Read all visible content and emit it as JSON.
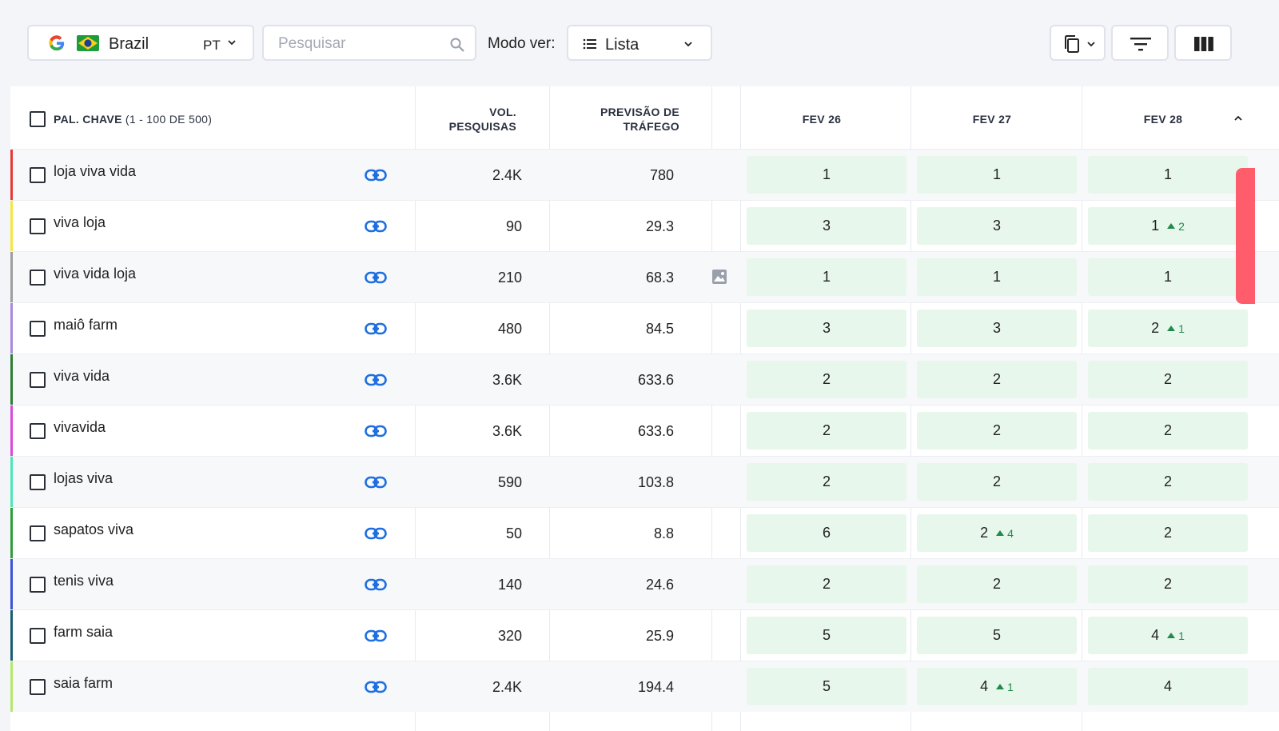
{
  "toolbar": {
    "country": "Brazil",
    "language": "PT",
    "search_placeholder": "Pesquisar",
    "search_value": "",
    "mode_label": "Modo ver:",
    "mode_value": "Lista"
  },
  "table": {
    "keyword_header": "PAL. CHAVE",
    "keyword_range": "(1 - 100 DE 500)",
    "volume_header_line1": "VOL.",
    "volume_header_line2": "PESQUISAS",
    "traffic_header_line1": "PREVISÃO DE",
    "traffic_header_line2": "TRÁFEGO",
    "date_headers": [
      "FEV 26",
      "FEV 27",
      "FEV 28"
    ],
    "rows": [
      {
        "keyword": "loja viva vida",
        "volume": "2.4K",
        "traffic": "780",
        "color": "#e53935",
        "positions": [
          {
            "value": "1",
            "change": ""
          },
          {
            "value": "1",
            "change": ""
          },
          {
            "value": "1",
            "change": ""
          }
        ]
      },
      {
        "keyword": "viva loja",
        "volume": "90",
        "traffic": "29.3",
        "color": "#f5e642",
        "positions": [
          {
            "value": "3",
            "change": ""
          },
          {
            "value": "3",
            "change": ""
          },
          {
            "value": "1",
            "change": "2"
          }
        ]
      },
      {
        "keyword": "viva vida loja",
        "volume": "210",
        "traffic": "68.3",
        "color": "#9e9e9e",
        "positions": [
          {
            "value": "1",
            "change": ""
          },
          {
            "value": "1",
            "change": ""
          },
          {
            "value": "1",
            "change": ""
          }
        ]
      },
      {
        "keyword": "maiô farm",
        "volume": "480",
        "traffic": "84.5",
        "color": "#a78be0",
        "positions": [
          {
            "value": "3",
            "change": ""
          },
          {
            "value": "3",
            "change": ""
          },
          {
            "value": "2",
            "change": "1"
          }
        ]
      },
      {
        "keyword": "viva vida",
        "volume": "3.6K",
        "traffic": "633.6",
        "color": "#2e7d32",
        "positions": [
          {
            "value": "2",
            "change": ""
          },
          {
            "value": "2",
            "change": ""
          },
          {
            "value": "2",
            "change": ""
          }
        ]
      },
      {
        "keyword": "vivavida",
        "volume": "3.6K",
        "traffic": "633.6",
        "color": "#d84bd8",
        "positions": [
          {
            "value": "2",
            "change": ""
          },
          {
            "value": "2",
            "change": ""
          },
          {
            "value": "2",
            "change": ""
          }
        ]
      },
      {
        "keyword": "lojas viva",
        "volume": "590",
        "traffic": "103.8",
        "color": "#4de6b6",
        "positions": [
          {
            "value": "2",
            "change": ""
          },
          {
            "value": "2",
            "change": ""
          },
          {
            "value": "2",
            "change": ""
          }
        ]
      },
      {
        "keyword": "sapatos viva",
        "volume": "50",
        "traffic": "8.8",
        "color": "#2e9e3a",
        "positions": [
          {
            "value": "6",
            "change": ""
          },
          {
            "value": "2",
            "change": "4"
          },
          {
            "value": "2",
            "change": ""
          }
        ]
      },
      {
        "keyword": "tenis viva",
        "volume": "140",
        "traffic": "24.6",
        "color": "#3f51d8",
        "positions": [
          {
            "value": "2",
            "change": ""
          },
          {
            "value": "2",
            "change": ""
          },
          {
            "value": "2",
            "change": ""
          }
        ]
      },
      {
        "keyword": "farm saia",
        "volume": "320",
        "traffic": "25.9",
        "color": "#1a5e6e",
        "positions": [
          {
            "value": "5",
            "change": ""
          },
          {
            "value": "5",
            "change": ""
          },
          {
            "value": "4",
            "change": "1"
          }
        ]
      },
      {
        "keyword": "saia farm",
        "volume": "2.4K",
        "traffic": "194.4",
        "color": "#b5e86a",
        "positions": [
          {
            "value": "5",
            "change": ""
          },
          {
            "value": "4",
            "change": "1"
          },
          {
            "value": "4",
            "change": ""
          }
        ]
      }
    ]
  },
  "colors": {
    "accent_link": "#1f6fe0",
    "position_bg": "#e8f7ec",
    "change_green": "#1f8a4c",
    "side_tab": "#ff5c6c"
  }
}
